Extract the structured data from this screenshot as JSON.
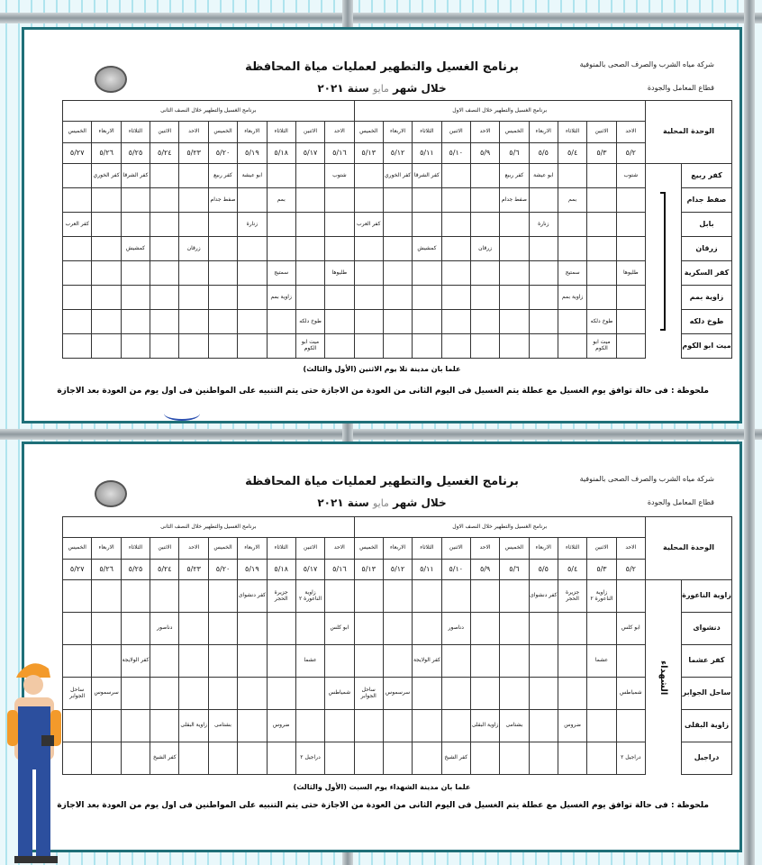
{
  "documents": [
    {
      "company": "شركة مياه الشرب والصرف الصحى بالمنوفية",
      "sector": "قطاع المعامل والجودة",
      "title": "برنامج الغسيل والتطهير لعمليات مياة المحافظة",
      "subtitle_prefix": "خلال شهر",
      "month": "مايو",
      "year_label": "سنة ٢٠٢١",
      "unit_header": "الوحدة المحلية",
      "half1": "برنامج الغسيل والتطهير خلال النصف الاول",
      "half2": "برنامج الغسيل والتطهير خلال النصف الثانى",
      "days": [
        "الاحد",
        "الاثنين",
        "الثلاثاء",
        "الاربعاء",
        "الخميس",
        "الاحد",
        "الاثنين",
        "الثلاثاء",
        "الاربعاء",
        "الخميس",
        "الاحد",
        "الاثنين",
        "الثلاثاء",
        "الاربعاء",
        "الخميس",
        "الاحد",
        "الاثنين",
        "الثلاثاء",
        "الاربعاء",
        "الخميس"
      ],
      "dates": [
        "٥/٢",
        "٥/٣",
        "٥/٤",
        "٥/٥",
        "٥/٦",
        "٥/٩",
        "٥/١٠",
        "٥/١١",
        "٥/١٢",
        "٥/١٣",
        "٥/١٦",
        "٥/١٧",
        "٥/١٨",
        "٥/١٩",
        "٥/٢٠",
        "٥/٢٣",
        "٥/٢٤",
        "٥/٢٥",
        "٥/٢٦",
        "٥/٢٧"
      ],
      "side_label": "",
      "rows": [
        {
          "unit": "كفر ربيع",
          "cells": {
            "0": "شتوب",
            "3": "ابو عيشة",
            "4": "كفر ربيع",
            "7": "كفر الشرقا",
            "8": "كفر الخوري",
            "10": "شتوب",
            "13": "ابو عيشة",
            "14": "كفر ربيع",
            "17": "كفر الشرقا",
            "18": "كفر الخوري"
          }
        },
        {
          "unit": "صفط جدام",
          "cells": {
            "2": "بمم",
            "4": "صفط جدام",
            "12": "بمم",
            "14": "صفط جدام"
          }
        },
        {
          "unit": "بابل",
          "cells": {
            "3": "زنارة",
            "9": "كفر العرب",
            "13": "زنارة",
            "19": "كفر العرب"
          }
        },
        {
          "unit": "زرقان",
          "cells": {
            "5": "زرقان",
            "7": "كمشيش",
            "15": "زرقان",
            "17": "كمشيش"
          }
        },
        {
          "unit": "كفر السكرية",
          "cells": {
            "0": "طليوها",
            "2": "سمتيج",
            "10": "طليوها",
            "12": "سمتيج"
          }
        },
        {
          "unit": "زاوية بمم",
          "cells": {
            "2": "زاوية بمم",
            "12": "زاوية بمم"
          }
        },
        {
          "unit": "طوخ دلكه",
          "cells": {
            "1": "طوخ دلكه",
            "11": "طوخ دلكه"
          }
        },
        {
          "unit": "ميت ابو الكوم",
          "cells": {
            "1": "ميت ابو الكوم",
            "11": "ميت ابو الكوم"
          }
        }
      ],
      "footer": "علما بان مدينة تلا يوم الاثنين (الأول والثالث)",
      "note": "ملحوظة : فى حالة توافق يوم الغسيل مع عطلة يتم الغسيل فى اليوم الثانى من العودة من الاجازة حتى يتم التنبيه على المواطنين فى اول يوم من العودة بعد الاجازة"
    },
    {
      "company": "شركة مياه الشرب والصرف الصحى بالمنوفية",
      "sector": "قطاع المعامل والجودة",
      "title": "برنامج الغسيل والتطهير لعمليات مياة المحافظة",
      "subtitle_prefix": "خلال شهر",
      "month": "مايو",
      "year_label": "سنة ٢٠٢١",
      "unit_header": "الوحدة المحلية",
      "half1": "برنامج الغسيل والتطهير خلال النصف الاول",
      "half2": "برنامج الغسيل والتطهير خلال النصف الثانى",
      "days": [
        "الاحد",
        "الاثنين",
        "الثلاثاء",
        "الاربعاء",
        "الخميس",
        "الاحد",
        "الاثنين",
        "الثلاثاء",
        "الاربعاء",
        "الخميس",
        "الاحد",
        "الاثنين",
        "الثلاثاء",
        "الاربعاء",
        "الخميس",
        "الاحد",
        "الاثنين",
        "الثلاثاء",
        "الاربعاء",
        "الخميس"
      ],
      "dates": [
        "٥/٢",
        "٥/٣",
        "٥/٤",
        "٥/٥",
        "٥/٦",
        "٥/٩",
        "٥/١٠",
        "٥/١١",
        "٥/١٢",
        "٥/١٣",
        "٥/١٦",
        "٥/١٧",
        "٥/١٨",
        "٥/١٩",
        "٥/٢٠",
        "٥/٢٣",
        "٥/٢٤",
        "٥/٢٥",
        "٥/٢٦",
        "٥/٢٧"
      ],
      "side_label": "الشهداء",
      "rows": [
        {
          "unit": "زاوية الناعورة",
          "cells": {
            "1": "زاوية الناعورة ٢",
            "2": "جزيرة الحجر",
            "3": "كفر دنشواى",
            "11": "زاوية الناعورة ٢",
            "12": "جزيرة الحجر",
            "13": "كفر دنشواى"
          }
        },
        {
          "unit": "دنشواى",
          "cells": {
            "0": "ابو كلس",
            "6": "دناصور",
            "10": "ابو كلس",
            "16": "دناصور"
          }
        },
        {
          "unit": "كفر عشما",
          "cells": {
            "1": "عشما",
            "7": "كفر الولايجة",
            "11": "عشما",
            "17": "كفر الولايجة"
          }
        },
        {
          "unit": "ساحل الجوابر",
          "cells": {
            "0": "شمياطس",
            "8": "سرسموس",
            "9": "ساحل الجوابر",
            "10": "شمياطس",
            "18": "سرسموس",
            "19": "ساحل الجوابر"
          }
        },
        {
          "unit": "زاوية البقلى",
          "cells": {
            "2": "ضروس",
            "4": "بشتامى",
            "5": "زاوية البقلى",
            "12": "ضروس",
            "14": "بشتامى",
            "15": "زاوية البقلى"
          }
        },
        {
          "unit": "دراجيل",
          "cells": {
            "0": "دراجيل ٢",
            "6": "كفر الشيخ",
            "11": "دراجيل ٢",
            "16": "كفر الشيخ"
          }
        }
      ],
      "footer": "علما بان مدينة الشهداء يوم السبت (الأول والثالث)",
      "note": "ملحوظة : فى حالة توافق يوم الغسيل مع عطلة يتم الغسيل فى اليوم الثانى من العودة من الاجازة حتى يتم التنبيه على المواطنين فى اول يوم من العودة بعد الاجازة"
    }
  ],
  "colors": {
    "frame": "#1f6f78",
    "background": "#dff3f7"
  }
}
